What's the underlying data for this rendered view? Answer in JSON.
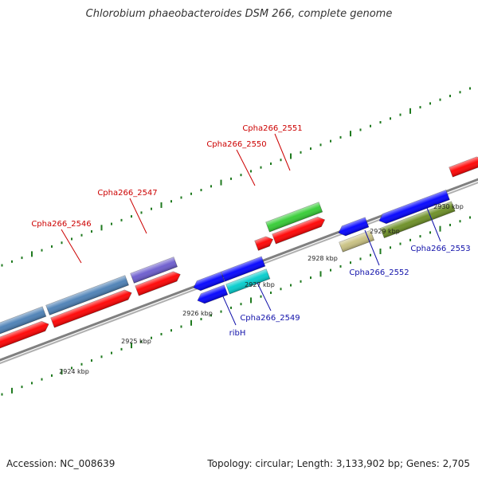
{
  "title": "Chlorobium phaeobacteroides DSM 266, complete genome",
  "footer": {
    "accession": "Accession: NC_008639",
    "summary": "Topology: circular; Length: 3,133,902 bp; Genes: 2,705"
  },
  "colors": {
    "backbone": "#808080",
    "tick": "#1f7a1f",
    "label_forward": "#cc0000",
    "label_reverse": "#1111aa"
  },
  "scale_labels": [
    "2924 kbp",
    "2925 kbp",
    "2926 kbp",
    "2927 kbp",
    "2928 kbp",
    "2929 kbp",
    "2930 kbp"
  ],
  "genes": [
    {
      "label": "Cpha266_2546",
      "strand": "forward",
      "color": "#4a7fb5"
    },
    {
      "label": "Cpha266_2547",
      "strand": "forward",
      "color": "#6a5acd"
    },
    {
      "label": "Cpha266_2550",
      "strand": "forward",
      "color": "#ff0000"
    },
    {
      "label": "Cpha266_2551",
      "strand": "forward",
      "color": "#33cc33"
    },
    {
      "label": "ribH",
      "strand": "reverse",
      "color": "#0000ff"
    },
    {
      "label": "Cpha266_2549",
      "strand": "reverse",
      "color": "#00cccc"
    },
    {
      "label": "Cpha266_2552",
      "strand": "reverse",
      "color": "#c8c080"
    },
    {
      "label": "Cpha266_2553",
      "strand": "reverse",
      "color": "#6b8e23"
    }
  ],
  "unlabeled_features": [
    {
      "strand": "forward",
      "color": "#ff0000"
    },
    {
      "strand": "reverse",
      "color": "#0000ff"
    }
  ]
}
